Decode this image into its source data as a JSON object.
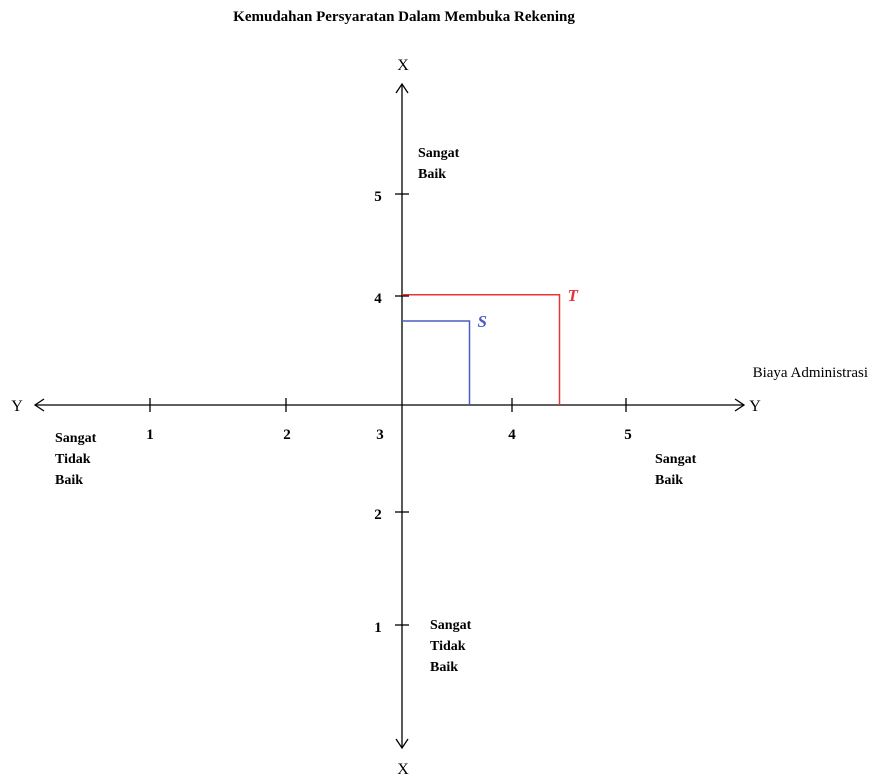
{
  "title": "Kemudahan Persyaratan Dalam Membuka Rekening",
  "horizontal_axis": {
    "label": "Biaya Administrasi",
    "left_end_label": "Y",
    "right_end_label": "Y",
    "tick_labels": [
      "1",
      "2",
      "3",
      "4",
      "5"
    ],
    "left_region": [
      "Sangat",
      "Tidak",
      "Baik"
    ],
    "right_region": [
      "Sangat",
      "Baik"
    ]
  },
  "vertical_axis": {
    "top_end_label": "X",
    "bottom_end_label": "X",
    "tick_labels": [
      "1",
      "2",
      "4",
      "5"
    ],
    "top_region": [
      "Sangat",
      "Baik"
    ],
    "bottom_region": [
      "Sangat",
      "Tidak",
      "Baik"
    ]
  },
  "points": [
    {
      "label": "S",
      "x": 3.3,
      "y": 3.8,
      "color": "#4a5bc4"
    },
    {
      "label": "T",
      "x": 3.7,
      "y": 4.05,
      "color": "#e8333a"
    }
  ],
  "colors": {
    "axis": "#000000",
    "S": "#4a5bc4",
    "T": "#e8333a"
  }
}
